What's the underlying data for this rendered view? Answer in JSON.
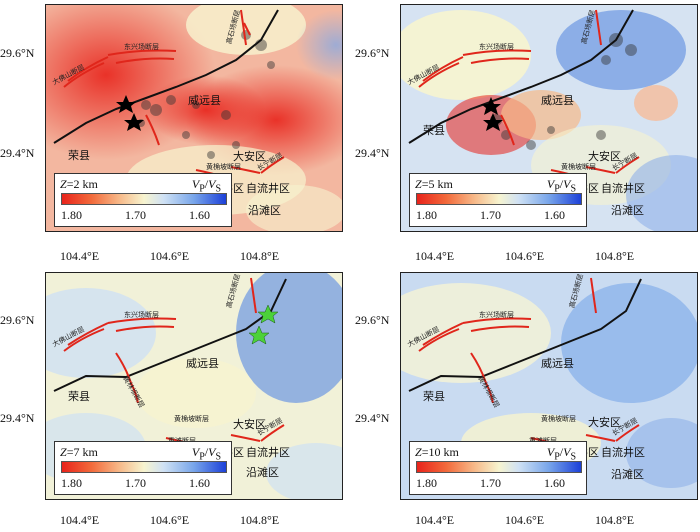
{
  "panels": [
    {
      "id": "a",
      "depth_prefix": "Z",
      "depth_value": "=2 km"
    },
    {
      "id": "b",
      "depth_prefix": "Z",
      "depth_value": "=5 km"
    },
    {
      "id": "c",
      "depth_prefix": "Z",
      "depth_value": "=7 km"
    },
    {
      "id": "d",
      "depth_prefix": "Z",
      "depth_value": "=10 km"
    }
  ],
  "legend": {
    "quantity_v": "V",
    "sub_p": "P",
    "slash": "/",
    "sub_s": "S",
    "ticks": [
      "1.80",
      "1.70",
      "1.60"
    ],
    "colors": {
      "low": "#e8231b",
      "mid": "#f7f4cf",
      "high": "#1c40d8"
    }
  },
  "axes": {
    "lat_ticks": [
      "29.6°N",
      "29.4°N"
    ],
    "lon_ticks": [
      "104.4°E",
      "104.6°E",
      "104.8°E"
    ]
  },
  "places": {
    "rongxian": "荣县",
    "weiyuan": "威远县",
    "daan": "大安区",
    "gongjing": "贡井区",
    "ziliujing": "自流井区",
    "yantan": "沿滩区"
  },
  "faults": {
    "dongxingchang": "东兴场断层",
    "dashatian": "大佛山断层",
    "gaoshichang": "高石场断层",
    "huangmaoba": "黄桷坡断层",
    "chongtan": "重滩断层",
    "changning": "长宁断层",
    "huanglinba": "黄林坝断层"
  },
  "colors": {
    "fault": "#e0261b",
    "profile": "#111111",
    "star_black": "#000000",
    "star_green": "#4cd13a"
  }
}
